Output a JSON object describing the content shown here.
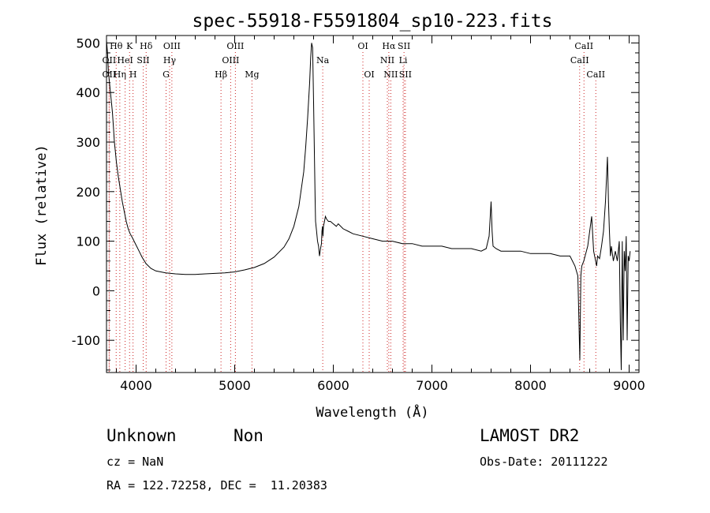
{
  "chart_data": {
    "type": "line",
    "title": "spec-55918-F5591804_sp10-223.fits",
    "xlabel": "Wavelength (Å)",
    "ylabel": "Flux (relative)",
    "xlim": [
      3700,
      9100
    ],
    "ylim": [
      -165,
      515
    ],
    "xticks": [
      4000,
      5000,
      6000,
      7000,
      8000,
      9000
    ],
    "yticks": [
      -100,
      0,
      100,
      200,
      300,
      400,
      500
    ],
    "grid": false,
    "series": [
      {
        "x": [
          3700,
          3710,
          3720,
          3730,
          3740,
          3750,
          3760,
          3770,
          3780,
          3790,
          3800,
          3820,
          3840,
          3860,
          3880,
          3900,
          3920,
          3940,
          3960,
          3980,
          4000,
          4030,
          4060,
          4100,
          4150,
          4200,
          4250,
          4300,
          4400,
          4500,
          4600,
          4700,
          4800,
          4900,
          5000,
          5100,
          5200,
          5300,
          5400,
          5500,
          5550,
          5600,
          5650,
          5700,
          5720,
          5740,
          5760,
          5770,
          5780,
          5790,
          5800,
          5810,
          5815,
          5820,
          5830,
          5840,
          5850,
          5860,
          5870,
          5880,
          5885,
          5890,
          5895,
          5900,
          5910,
          5920,
          5930,
          5950,
          5970,
          6000,
          6030,
          6050,
          6100,
          6150,
          6200,
          6300,
          6400,
          6500,
          6600,
          6700,
          6800,
          6900,
          7000,
          7100,
          7200,
          7300,
          7400,
          7500,
          7550,
          7580,
          7600,
          7610,
          7620,
          7650,
          7700,
          7800,
          7900,
          8000,
          8100,
          8200,
          8300,
          8400,
          8450,
          8480,
          8500,
          8505,
          8510,
          8520,
          8540,
          8560,
          8580,
          8600,
          8620,
          8640,
          8660,
          8670,
          8680,
          8700,
          8720,
          8740,
          8760,
          8780,
          8790,
          8800,
          8810,
          8820,
          8840,
          8860,
          8880,
          8900,
          8910,
          8920,
          8930,
          8940,
          8950,
          8960,
          8970,
          8980,
          8990,
          9000,
          9010
        ],
        "y": [
          505,
          480,
          440,
          420,
          400,
          380,
          360,
          330,
          300,
          280,
          260,
          230,
          205,
          180,
          160,
          140,
          125,
          115,
          108,
          100,
          92,
          80,
          68,
          55,
          45,
          40,
          38,
          36,
          34,
          33,
          33,
          34,
          35,
          36,
          38,
          42,
          47,
          55,
          68,
          88,
          105,
          130,
          170,
          240,
          290,
          350,
          420,
          470,
          500,
          490,
          380,
          250,
          190,
          140,
          120,
          100,
          90,
          70,
          85,
          95,
          120,
          130,
          110,
          130,
          140,
          150,
          145,
          140,
          140,
          135,
          130,
          135,
          125,
          120,
          115,
          110,
          105,
          100,
          100,
          95,
          95,
          90,
          90,
          90,
          85,
          85,
          85,
          80,
          85,
          110,
          180,
          120,
          90,
          85,
          80,
          80,
          80,
          75,
          75,
          75,
          70,
          70,
          50,
          30,
          -140,
          -60,
          30,
          50,
          60,
          75,
          90,
          120,
          150,
          80,
          60,
          50,
          70,
          65,
          90,
          120,
          180,
          270,
          180,
          120,
          70,
          90,
          60,
          80,
          60,
          100,
          -60,
          -160,
          100,
          -100,
          80,
          40,
          110,
          -100,
          70,
          60,
          80
        ]
      }
    ],
    "line_markers": [
      {
        "label": "Hθ",
        "row": 0,
        "wavelength": 3798
      },
      {
        "label": "K",
        "row": 0,
        "wavelength": 3934
      },
      {
        "label": "Hδ",
        "row": 0,
        "wavelength": 4102
      },
      {
        "label": "OIII",
        "row": 0,
        "wavelength": 4363
      },
      {
        "label": "OIII",
        "row": 0,
        "wavelength": 5007
      },
      {
        "label": "OI",
        "row": 0,
        "wavelength": 6300
      },
      {
        "label": "Hα",
        "row": 0,
        "wavelength": 6563
      },
      {
        "label": "SII",
        "row": 0,
        "wavelength": 6717
      },
      {
        "label": "CaII",
        "row": 0,
        "wavelength": 8542
      },
      {
        "label": "OII",
        "row": 1,
        "wavelength": 3727
      },
      {
        "label": "HeI",
        "row": 1,
        "wavelength": 3889
      },
      {
        "label": "SII",
        "row": 1,
        "wavelength": 4072
      },
      {
        "label": "Hγ",
        "row": 1,
        "wavelength": 4340
      },
      {
        "label": "OIII",
        "row": 1,
        "wavelength": 4959
      },
      {
        "label": "Na",
        "row": 1,
        "wavelength": 5893
      },
      {
        "label": "NII",
        "row": 1,
        "wavelength": 6548
      },
      {
        "label": "Li",
        "row": 1,
        "wavelength": 6708
      },
      {
        "label": "CaII",
        "row": 1,
        "wavelength": 8498
      },
      {
        "label": "OII",
        "row": 2,
        "wavelength": 3727
      },
      {
        "label": "Hη",
        "row": 2,
        "wavelength": 3835
      },
      {
        "label": "H",
        "row": 2,
        "wavelength": 3969
      },
      {
        "label": "G",
        "row": 2,
        "wavelength": 4304
      },
      {
        "label": "Hβ",
        "row": 2,
        "wavelength": 4861
      },
      {
        "label": "Mg",
        "row": 2,
        "wavelength": 5175
      },
      {
        "label": "OI",
        "row": 2,
        "wavelength": 6364
      },
      {
        "label": "NII",
        "row": 2,
        "wavelength": 6583
      },
      {
        "label": "SII",
        "row": 2,
        "wavelength": 6731
      },
      {
        "label": "CaII",
        "row": 2,
        "wavelength": 8662
      }
    ]
  },
  "info": {
    "object_class": "Unknown",
    "subclass": "Non",
    "survey": "LAMOST DR2",
    "cz": "cz = NaN",
    "obs_date": "Obs-Date: 20111222",
    "coords": "RA = 122.72258, DEC =  11.20383"
  }
}
